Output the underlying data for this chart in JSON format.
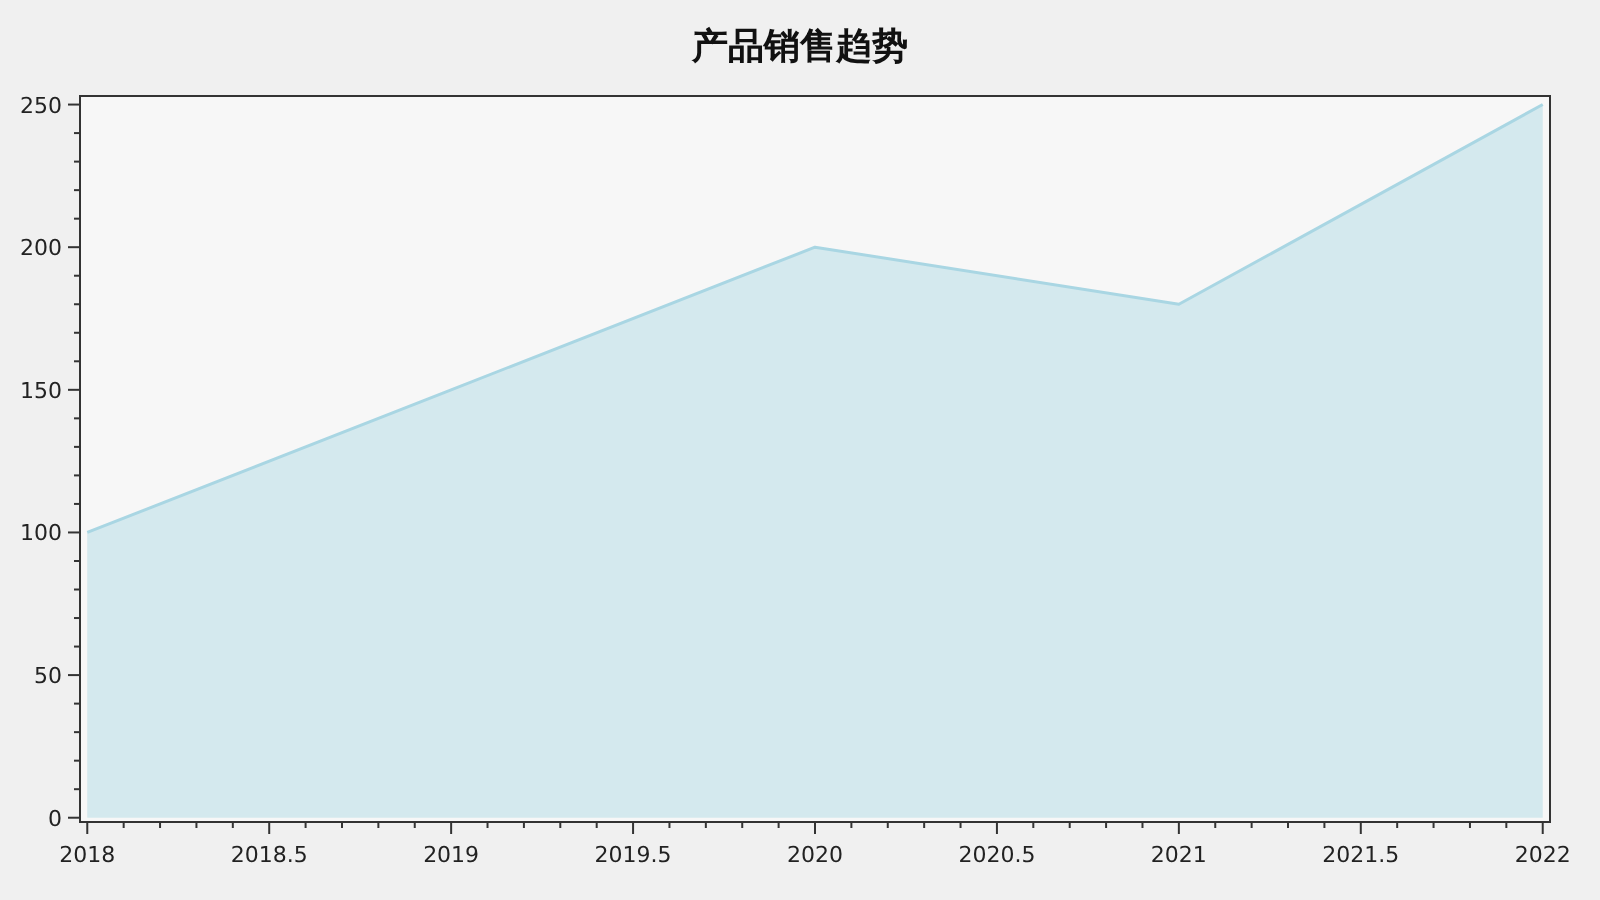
{
  "chart_data": {
    "type": "area",
    "title": "产品销售趋势",
    "x": [
      2018,
      2019,
      2020,
      2021,
      2022
    ],
    "series": [
      {
        "color": "#a9d6e3",
        "values": [
          100,
          150,
          200,
          180,
          250
        ]
      }
    ],
    "xlim": [
      2017.98,
      2022.02
    ],
    "xticks": [
      2018,
      2018.5,
      2019,
      2019.5,
      2020,
      2020.5,
      2021,
      2021.5,
      2022
    ],
    "ylim": [
      -1.5,
      253
    ],
    "yticks": [
      0,
      50,
      100,
      150,
      200,
      250
    ]
  }
}
